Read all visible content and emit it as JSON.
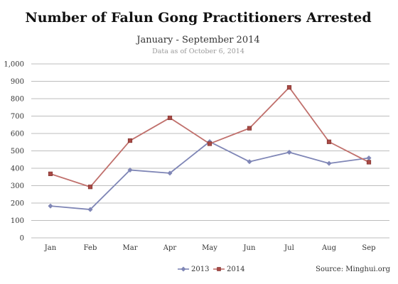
{
  "chart_data": {
    "type": "line",
    "title": "Number of Falun Gong Practitioners Arrested",
    "subtitle": "January - September 2014",
    "note": "Data as of October 6, 2014",
    "source": "Source: Minghui.org",
    "categories": [
      "Jan",
      "Feb",
      "Mar",
      "Apr",
      "May",
      "Jun",
      "Jul",
      "Aug",
      "Sep"
    ],
    "ylim": [
      0,
      1000
    ],
    "yticks": [
      0,
      100,
      200,
      300,
      400,
      500,
      600,
      700,
      800,
      900,
      1000
    ],
    "ytick_labels": [
      "0",
      "100",
      "200",
      "300",
      "400",
      "500",
      "600",
      "700",
      "800",
      "900",
      "1,000"
    ],
    "grid": true,
    "legend_position": "bottom",
    "series": [
      {
        "name": "2013",
        "color": "#7f86b6",
        "marker": "diamond",
        "values": [
          183,
          163,
          390,
          372,
          553,
          438,
          492,
          428,
          459
        ]
      },
      {
        "name": "2014",
        "color": "#c0706c",
        "marker": "square",
        "values": [
          368,
          293,
          559,
          690,
          541,
          630,
          865,
          552,
          435
        ]
      }
    ]
  }
}
